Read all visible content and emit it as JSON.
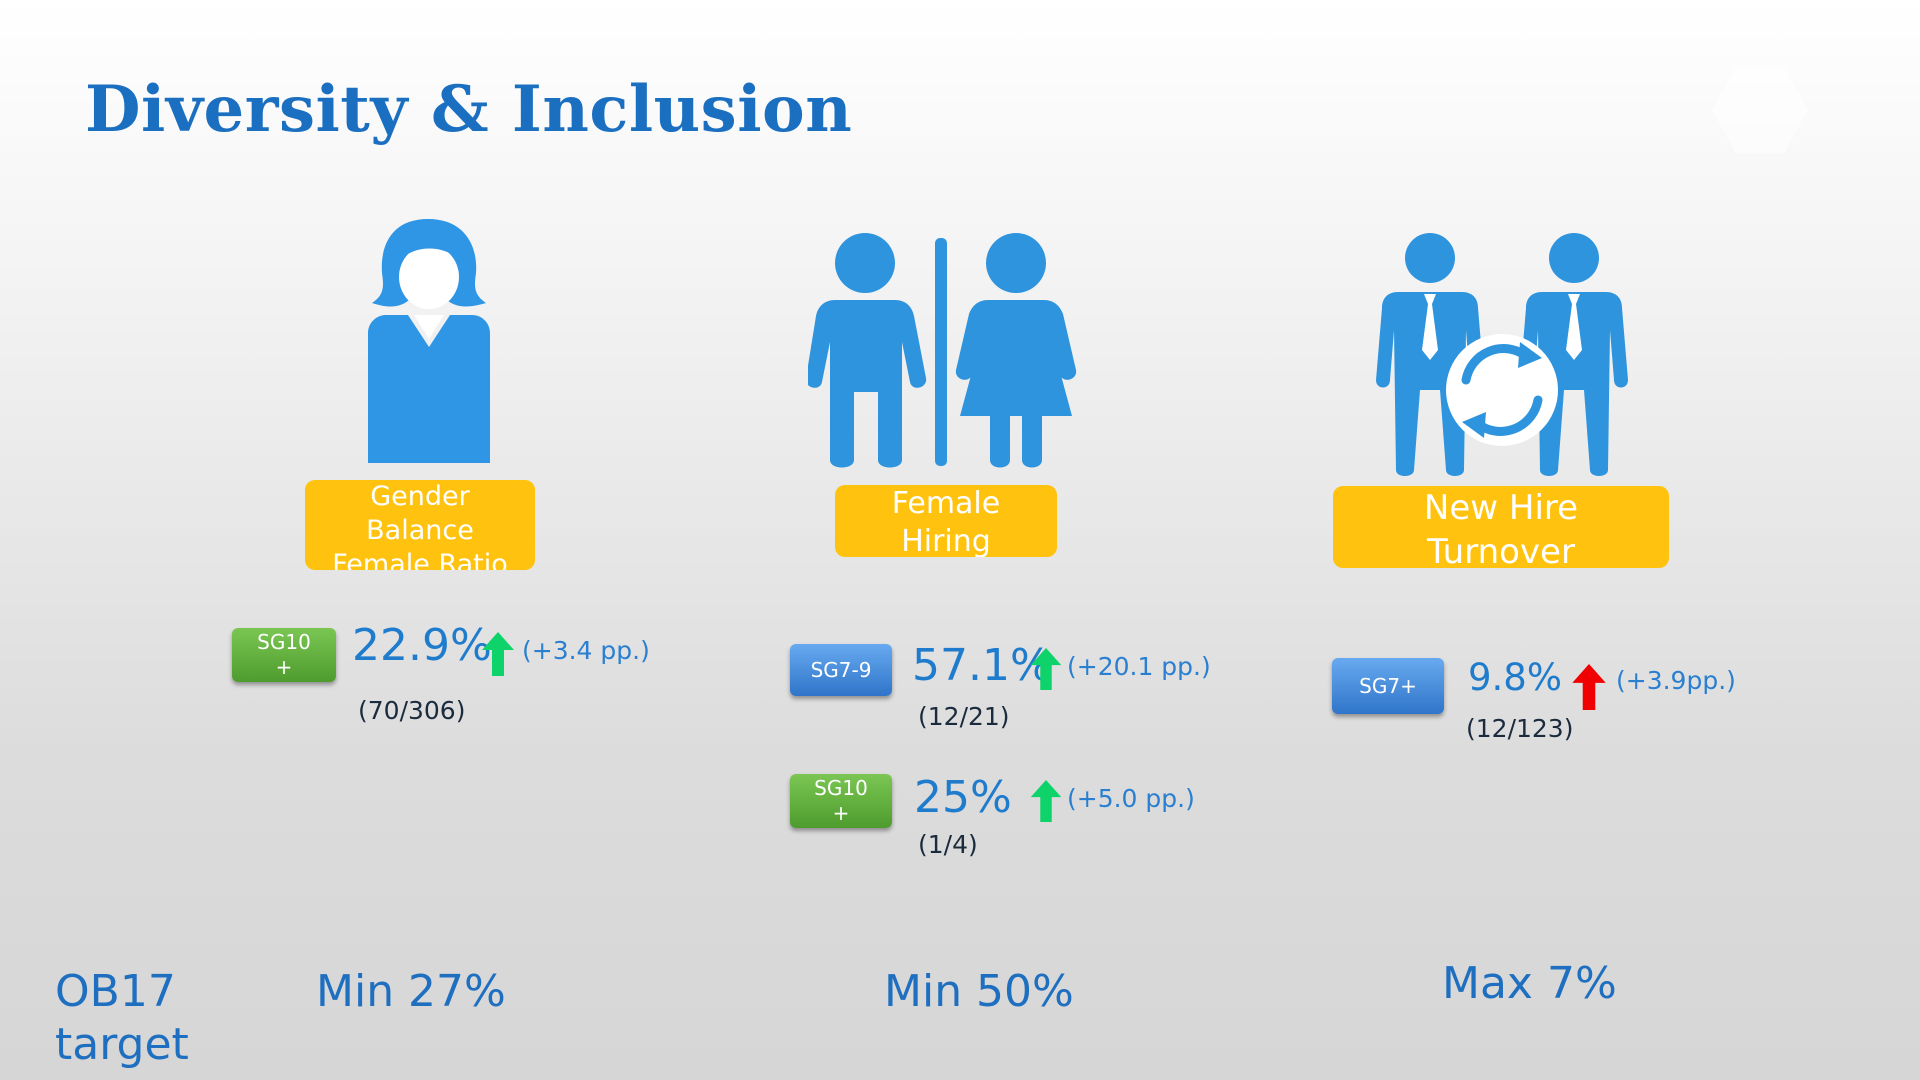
{
  "title": "Diversity & Inclusion",
  "colors": {
    "accent": "#1b6fc0",
    "label_bg": "#ffc20e",
    "up_good": "#0dd36a",
    "up_bad": "#f00000",
    "icon": "#2a95dd"
  },
  "sections": [
    {
      "icon": "female-person-icon",
      "label": [
        "Gender",
        "Balance",
        "Female Ratio"
      ],
      "metrics": [
        {
          "badge": [
            "SG10",
            "+"
          ],
          "badge_color": "green",
          "percent": "22.9%",
          "arrow": "up-green",
          "delta": "(+3.4 pp.)",
          "count": "(70/306)"
        }
      ],
      "target": "Min 27%"
    },
    {
      "icon": "restroom-icon",
      "label": [
        "Female",
        "Hiring"
      ],
      "metrics": [
        {
          "badge": [
            "SG7-9"
          ],
          "badge_color": "blue",
          "percent": "57.1%",
          "arrow": "up-green",
          "delta": "(+20.1 pp.)",
          "count": "(12/21)"
        },
        {
          "badge": [
            "SG10",
            "+"
          ],
          "badge_color": "green",
          "percent": "25%",
          "arrow": "up-green",
          "delta": "(+5.0 pp.)",
          "count": "(1/4)"
        }
      ],
      "target": "Min 50%"
    },
    {
      "icon": "employee-turnover-icon",
      "label": [
        "New Hire",
        "Turnover"
      ],
      "metrics": [
        {
          "badge": [
            "SG7+"
          ],
          "badge_color": "blue",
          "percent": "9.8%",
          "arrow": "up-red",
          "delta": "(+3.9pp.)",
          "count": "(12/123)"
        }
      ],
      "target": "Max 7%"
    }
  ],
  "target_label": [
    "OB17",
    "target"
  ]
}
